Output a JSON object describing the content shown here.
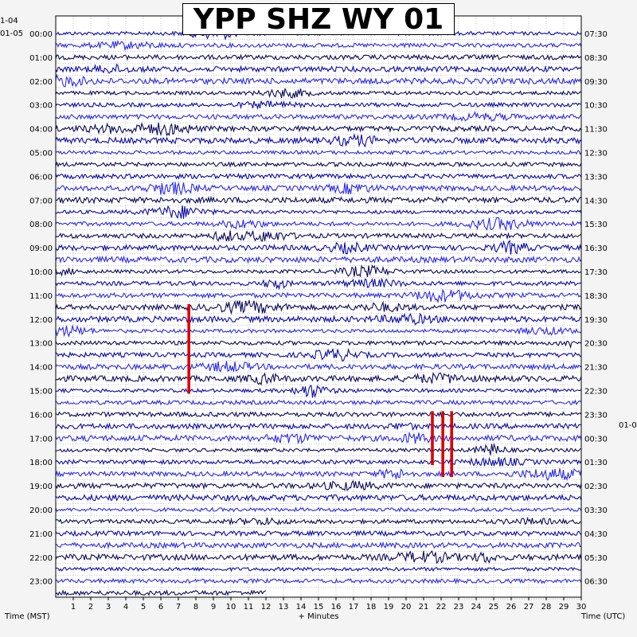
{
  "chart_data": {
    "type": "line",
    "title": "YPP SHZ WY 01",
    "xlabel": "+ Minutes",
    "left_axis_title": "Time (MST)",
    "right_axis_title": "Time (UTC)",
    "x_ticks": [
      "1",
      "2",
      "3",
      "4",
      "5",
      "6",
      "7",
      "8",
      "9",
      "10",
      "11",
      "12",
      "13",
      "14",
      "15",
      "16",
      "17",
      "18",
      "19",
      "20",
      "21",
      "22",
      "23",
      "24",
      "25",
      "26",
      "27",
      "28",
      "29",
      "30"
    ],
    "xlim": [
      0,
      30
    ],
    "left_date_top": "1-04",
    "left_date": "01-05",
    "right_date": "01-0",
    "left_hour_labels": [
      "00:00",
      "01:00",
      "02:00",
      "03:00",
      "04:00",
      "05:00",
      "06:00",
      "07:00",
      "08:00",
      "09:00",
      "10:00",
      "11:00",
      "12:00",
      "13:00",
      "14:00",
      "15:00",
      "16:00",
      "17:00",
      "18:00",
      "19:00",
      "20:00",
      "21:00",
      "22:00",
      "23:00"
    ],
    "right_hour_labels": [
      "07:30",
      "08:30",
      "09:30",
      "10:30",
      "11:30",
      "12:30",
      "13:30",
      "14:30",
      "15:30",
      "16:30",
      "17:30",
      "18:30",
      "19:30",
      "20:30",
      "21:30",
      "22:30",
      "23:30",
      "00:30",
      "01:30",
      "02:30",
      "03:30",
      "04:30",
      "05:30",
      "06:30"
    ],
    "traces_per_hour": 2,
    "last_trace_end_minute": 12,
    "colors": {
      "trace_a": "#0a0aa8",
      "trace_b": "#2a2ae8",
      "trace_c": "#0a0a5a",
      "event": "#dd0000"
    },
    "events": [
      {
        "minute": 7.6,
        "trace_start": 23,
        "trace_end": 30
      },
      {
        "minute": 21.5,
        "trace_start": 32,
        "trace_end": 36
      },
      {
        "minute": 22.1,
        "trace_start": 32,
        "trace_end": 37
      },
      {
        "minute": 22.6,
        "trace_start": 32,
        "trace_end": 37
      }
    ]
  }
}
